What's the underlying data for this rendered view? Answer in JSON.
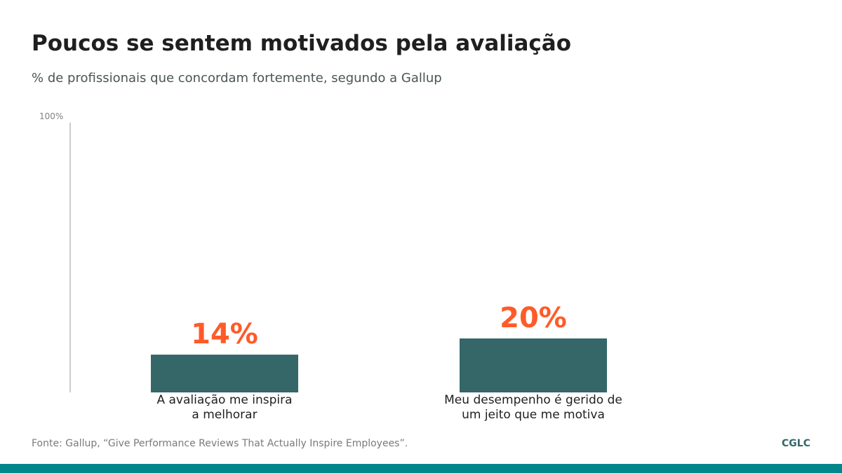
{
  "chart_data": {
    "type": "bar",
    "title": "Poucos se sentem motivados pela avaliação",
    "subtitle": "% de profissionais que concordam fortemente, segundo a Gallup",
    "categories": [
      [
        "A avaliação me inspira",
        "a melhorar"
      ],
      [
        "Meu desempenho é gerido de",
        "um jeito que me motiva"
      ]
    ],
    "values": [
      14,
      20
    ],
    "value_labels": [
      "14%",
      "20%"
    ],
    "ylim": [
      0,
      100
    ],
    "y_max_label": "100%",
    "grid": false,
    "legend": "none"
  },
  "source": "Fonte: Gallup, “Give Performance Reviews That Actually Inspire Employees”.",
  "brand": "CGLC",
  "colors": {
    "bar": "#356668",
    "value_label": "#ff5b29",
    "axis": "#cccccc",
    "footer_bar": "#00878b"
  }
}
